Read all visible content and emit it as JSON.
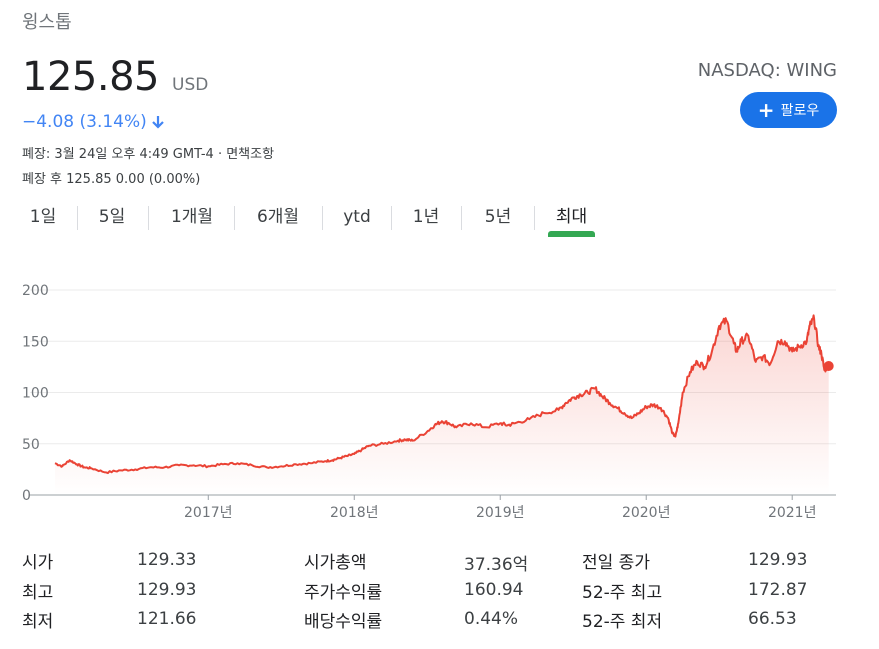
{
  "header": {
    "company": "윙스톱",
    "price": "125.85",
    "currency": "USD",
    "exchange": "NASDAQ: WING",
    "change": "−4.08 (3.14%)",
    "closed_info": "폐장: 3월 24일 오후 4:49 GMT-4 · 면책조항",
    "after_hours": "폐장 후 125.85 0.00 (0.00%)",
    "follow_label": "팔로우",
    "accent_color": "#1a73e8",
    "down_color": "#4285f4"
  },
  "tabs": [
    {
      "label": "1일"
    },
    {
      "label": "5일"
    },
    {
      "label": "1개월"
    },
    {
      "label": "6개월"
    },
    {
      "label": "ytd"
    },
    {
      "label": "1년"
    },
    {
      "label": "5년"
    },
    {
      "label": "최대",
      "active": true
    }
  ],
  "chart_data": {
    "type": "area",
    "line_color": "#ea4335",
    "y_ticks": [
      "200",
      "150",
      "100",
      "50",
      "0"
    ],
    "ylim": [
      0,
      200
    ],
    "x_ticks": [
      {
        "label": "2017년",
        "x": 2017.0
      },
      {
        "label": "2018년",
        "x": 2018.0
      },
      {
        "label": "2019년",
        "x": 2019.0
      },
      {
        "label": "2020년",
        "x": 2020.0
      },
      {
        "label": "2021년",
        "x": 2021.0
      }
    ],
    "xlim": [
      2015.95,
      2021.3
    ],
    "grid": true,
    "series": [
      {
        "x": [
          2015.95,
          2016.0,
          2016.05,
          2016.1,
          2016.15,
          2016.2,
          2016.3,
          2016.4,
          2016.5,
          2016.6,
          2016.7,
          2016.8,
          2016.9,
          2017.0,
          2017.1,
          2017.2,
          2017.3,
          2017.4,
          2017.5,
          2017.6,
          2017.7,
          2017.8,
          2017.85,
          2017.9,
          2017.95,
          2018.0,
          2018.05,
          2018.1,
          2018.2,
          2018.3,
          2018.35,
          2018.4,
          2018.5,
          2018.55,
          2018.6,
          2018.65,
          2018.7,
          2018.8,
          2018.9,
          2019.0,
          2019.05,
          2019.1,
          2019.2,
          2019.3,
          2019.4,
          2019.45,
          2019.5,
          2019.55,
          2019.6,
          2019.65,
          2019.7,
          2019.75,
          2019.8,
          2019.85,
          2019.9,
          2019.95,
          2020.0,
          2020.05,
          2020.1,
          2020.15,
          2020.18,
          2020.2,
          2020.22,
          2020.25,
          2020.3,
          2020.35,
          2020.4,
          2020.45,
          2020.5,
          2020.55,
          2020.6,
          2020.62,
          2020.65,
          2020.7,
          2020.75,
          2020.8,
          2020.85,
          2020.9,
          2020.95,
          2021.0,
          2021.05,
          2021.1,
          2021.12,
          2021.15,
          2021.18,
          2021.2,
          2021.22,
          2021.25
        ],
        "y": [
          31,
          28,
          34,
          30,
          27,
          26,
          22,
          24,
          25,
          27,
          27,
          29,
          29,
          28,
          30,
          31,
          29,
          27,
          28,
          30,
          31,
          33,
          34,
          36,
          38,
          40,
          44,
          48,
          50,
          53,
          54,
          53,
          62,
          68,
          72,
          70,
          66,
          70,
          66,
          70,
          68,
          70,
          74,
          80,
          83,
          90,
          95,
          98,
          100,
          104,
          96,
          90,
          85,
          80,
          75,
          80,
          86,
          88,
          85,
          75,
          60,
          57,
          70,
          100,
          120,
          130,
          125,
          140,
          165,
          170,
          148,
          140,
          150,
          155,
          130,
          135,
          128,
          150,
          150,
          140,
          145,
          150,
          165,
          172,
          145,
          138,
          122,
          126
        ]
      }
    ],
    "last_value": 125.85
  },
  "stats": {
    "col1": [
      {
        "label": "시가",
        "value": "129.33"
      },
      {
        "label": "최고",
        "value": "129.93"
      },
      {
        "label": "최저",
        "value": "121.66"
      }
    ],
    "col2": [
      {
        "label": "시가총액",
        "value": "37.36억"
      },
      {
        "label": "주가수익률",
        "value": "160.94"
      },
      {
        "label": "배당수익률",
        "value": "0.44%"
      }
    ],
    "col3": [
      {
        "label": "전일 종가",
        "value": "129.93"
      },
      {
        "label": "52-주 최고",
        "value": "172.87"
      },
      {
        "label": "52-주 최저",
        "value": "66.53"
      }
    ]
  }
}
